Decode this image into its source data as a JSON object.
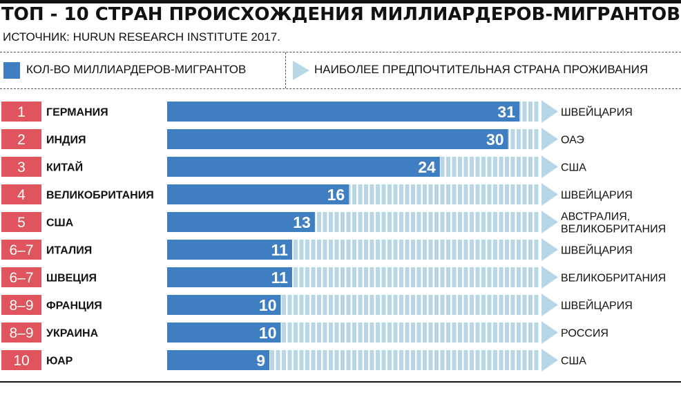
{
  "title": "ТОП - 10 СТРАН ПРОИСХОЖДЕНИЯ МИЛЛИАРДЕРОВ-МИГРАНТОВ",
  "source": "ИСТОЧНИК: HURUN RESEARCH INSTITUTE 2017.",
  "legend": {
    "count_label": "КОЛ-ВО МИЛЛИАРДЕРОВ-МИГРАНТОВ",
    "destination_label": "НАИБОЛЕЕ ПРЕДПОЧТИТЕЛЬНАЯ СТРАНА ПРОЖИВАНИЯ"
  },
  "colors": {
    "bar": "#3f7fc1",
    "stripe": "#b8d7e6",
    "rank_badge": "#e0545e",
    "arrow": "#b8d7e6"
  },
  "chart_data": {
    "type": "bar",
    "orientation": "horizontal",
    "title": "ТОП - 10 СТРАН ПРОИСХОЖДЕНИЯ МИЛЛИАРДЕРОВ-МИГРАНТОВ",
    "xlim": [
      0,
      31
    ],
    "rows": [
      {
        "rank": "1",
        "country": "ГЕРМАНИЯ",
        "value": 31,
        "destination": [
          "ШВЕЙЦАРИЯ"
        ]
      },
      {
        "rank": "2",
        "country": "ИНДИЯ",
        "value": 30,
        "destination": [
          "ОАЭ"
        ]
      },
      {
        "rank": "3",
        "country": "КИТАЙ",
        "value": 24,
        "destination": [
          "США"
        ]
      },
      {
        "rank": "4",
        "country": "ВЕЛИКОБРИТАНИЯ",
        "value": 16,
        "destination": [
          "ШВЕЙЦАРИЯ"
        ]
      },
      {
        "rank": "5",
        "country": "США",
        "value": 13,
        "destination": [
          "АВСТРАЛИЯ,",
          "ВЕЛИКОБРИТАНИЯ"
        ]
      },
      {
        "rank": "6–7",
        "country": "ИТАЛИЯ",
        "value": 11,
        "destination": [
          "ШВЕЙЦАРИЯ"
        ]
      },
      {
        "rank": "6–7",
        "country": "ШВЕЦИЯ",
        "value": 11,
        "destination": [
          "ВЕЛИКОБРИТАНИЯ"
        ]
      },
      {
        "rank": "8–9",
        "country": "ФРАНЦИЯ",
        "value": 10,
        "destination": [
          "ШВЕЙЦАРИЯ"
        ]
      },
      {
        "rank": "8–9",
        "country": "УКРАИНА",
        "value": 10,
        "destination": [
          "РОССИЯ"
        ]
      },
      {
        "rank": "10",
        "country": "ЮАР",
        "value": 9,
        "destination": [
          "США"
        ]
      }
    ]
  }
}
